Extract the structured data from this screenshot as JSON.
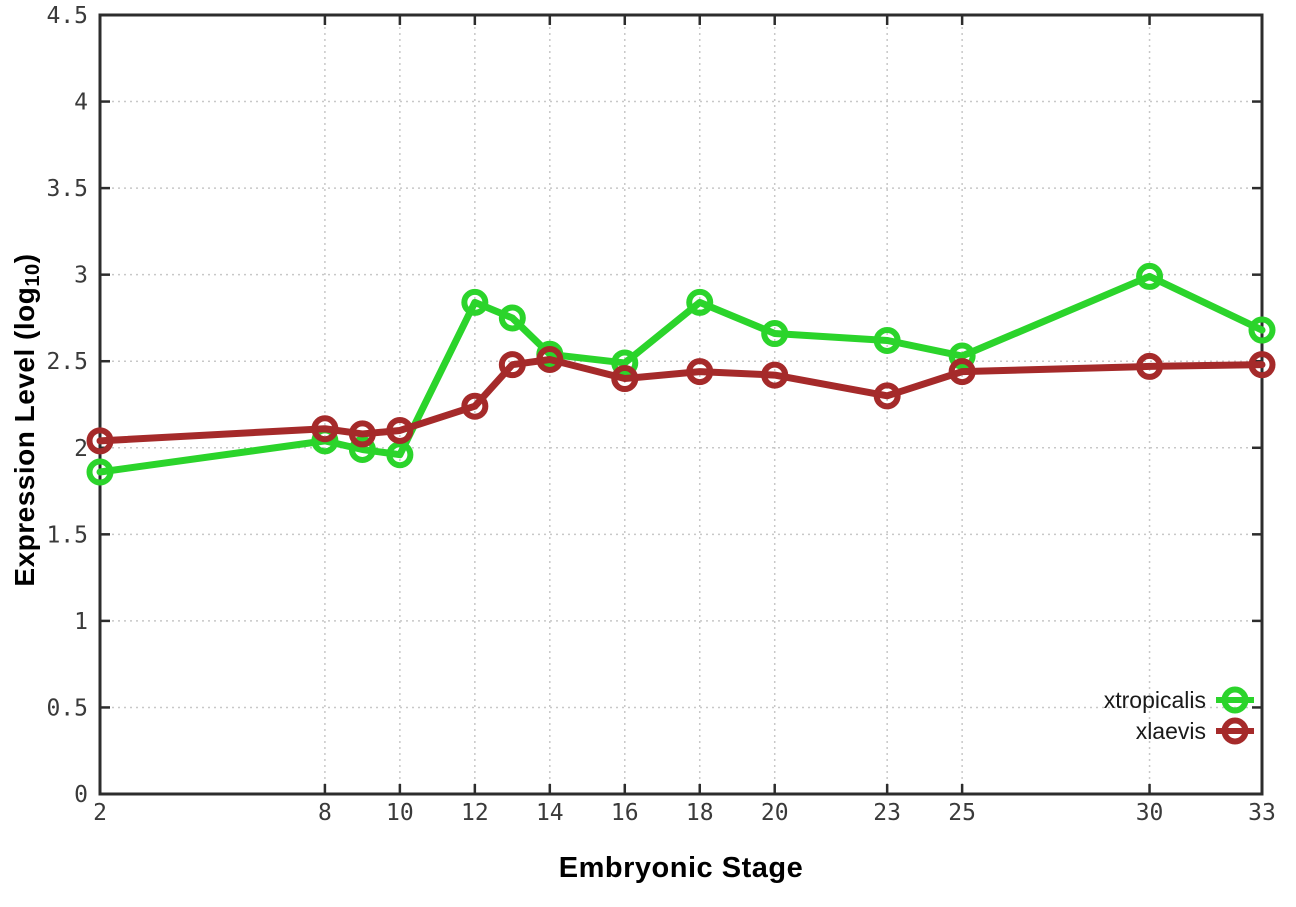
{
  "chart_data": {
    "type": "line",
    "title": "",
    "xlabel": "Embryonic Stage",
    "ylabel": "Expression Level (log10)",
    "ylabel_parts": {
      "pre": "Expression Level (log",
      "sub": "10",
      "post": ")"
    },
    "x": [
      2,
      8,
      9,
      10,
      12,
      13,
      14,
      16,
      18,
      20,
      23,
      25,
      30,
      33
    ],
    "series": [
      {
        "name": "xtropicalis",
        "color": "#2bd42b",
        "values": [
          1.86,
          2.04,
          1.99,
          1.96,
          2.84,
          2.75,
          2.54,
          2.49,
          2.84,
          2.66,
          2.62,
          2.53,
          2.99,
          2.68
        ]
      },
      {
        "name": "xlaevis",
        "color": "#a52a2a",
        "values": [
          2.04,
          2.11,
          2.08,
          2.1,
          2.24,
          2.48,
          2.51,
          2.4,
          2.44,
          2.42,
          2.3,
          2.44,
          2.47,
          2.48
        ]
      }
    ],
    "xlim": [
      2,
      33
    ],
    "ylim": [
      0,
      4.5
    ],
    "xticks": {
      "values": [
        2,
        8,
        10,
        12,
        14,
        16,
        18,
        20,
        23,
        25,
        30,
        33
      ],
      "labels": [
        "2",
        "8",
        "10",
        "12",
        "14",
        "16",
        "18",
        "20",
        "23",
        "25",
        "30",
        "33"
      ]
    },
    "yticks": {
      "values": [
        0,
        0.5,
        1,
        1.5,
        2,
        2.5,
        3,
        3.5,
        4,
        4.5
      ],
      "labels": [
        "0",
        "0.5",
        "1",
        "1.5",
        "2",
        "2.5",
        "3",
        "3.5",
        "4",
        "4.5"
      ]
    },
    "grid": true,
    "legend_position": "bottom-right",
    "marker": "open-circle"
  },
  "colors": {
    "background": "#ffffff",
    "border": "#2d2d2d",
    "grid": "#c8c8c8",
    "tick_text": "#3a3a3a",
    "legend_text": "#1a1a1a"
  }
}
